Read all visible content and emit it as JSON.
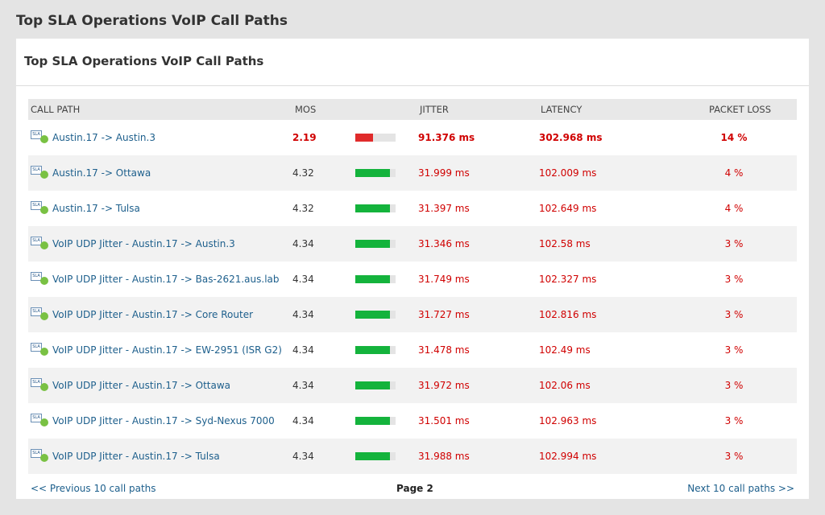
{
  "page_title": "Top SLA Operations VoIP Call Paths",
  "panel": {
    "title": "Top SLA Operations VoIP Call Paths",
    "icon_text": "SLA",
    "columns": [
      "CALL PATH",
      "MOS",
      "JITTER",
      "LATENCY",
      "PACKET LOSS"
    ],
    "rows": [
      {
        "call_path": "Austin.17 -> Austin.3",
        "mos": 2.19,
        "bar_color": "#e02b2b",
        "bold": true,
        "jitter": "91.376 ms",
        "latency": "302.968 ms",
        "packet_loss": "14 %"
      },
      {
        "call_path": "Austin.17 -> Ottawa",
        "mos": 4.32,
        "bar_color": "#14b33c",
        "bold": false,
        "jitter": "31.999 ms",
        "latency": "102.009 ms",
        "packet_loss": "4 %"
      },
      {
        "call_path": "Austin.17 -> Tulsa",
        "mos": 4.32,
        "bar_color": "#14b33c",
        "bold": false,
        "jitter": "31.397 ms",
        "latency": "102.649 ms",
        "packet_loss": "4 %"
      },
      {
        "call_path": "VoIP UDP Jitter - Austin.17 -> Austin.3",
        "mos": 4.34,
        "bar_color": "#14b33c",
        "bold": false,
        "jitter": "31.346 ms",
        "latency": "102.58 ms",
        "packet_loss": "3 %"
      },
      {
        "call_path": "VoIP UDP Jitter - Austin.17 -> Bas-2621.aus.lab",
        "mos": 4.34,
        "bar_color": "#14b33c",
        "bold": false,
        "jitter": "31.749 ms",
        "latency": "102.327 ms",
        "packet_loss": "3 %"
      },
      {
        "call_path": "VoIP UDP Jitter - Austin.17 -> Core Router",
        "mos": 4.34,
        "bar_color": "#14b33c",
        "bold": false,
        "jitter": "31.727 ms",
        "latency": "102.816 ms",
        "packet_loss": "3 %"
      },
      {
        "call_path": "VoIP UDP Jitter - Austin.17 -> EW-2951 (ISR G2)",
        "mos": 4.34,
        "bar_color": "#14b33c",
        "bold": false,
        "jitter": "31.478 ms",
        "latency": "102.49 ms",
        "packet_loss": "3 %"
      },
      {
        "call_path": "VoIP UDP Jitter - Austin.17 -> Ottawa",
        "mos": 4.34,
        "bar_color": "#14b33c",
        "bold": false,
        "jitter": "31.972 ms",
        "latency": "102.06 ms",
        "packet_loss": "3 %"
      },
      {
        "call_path": "VoIP UDP Jitter - Austin.17 -> Syd-Nexus 7000",
        "mos": 4.34,
        "bar_color": "#14b33c",
        "bold": false,
        "jitter": "31.501 ms",
        "latency": "102.963 ms",
        "packet_loss": "3 %"
      },
      {
        "call_path": "VoIP UDP Jitter - Austin.17 -> Tulsa",
        "mos": 4.34,
        "bar_color": "#14b33c",
        "bold": false,
        "jitter": "31.988 ms",
        "latency": "102.994 ms",
        "packet_loss": "3 %"
      }
    ],
    "footer": {
      "prev": "<< Previous 10 call paths",
      "page": "Page 2",
      "next": "Next 10 call paths >>"
    }
  }
}
